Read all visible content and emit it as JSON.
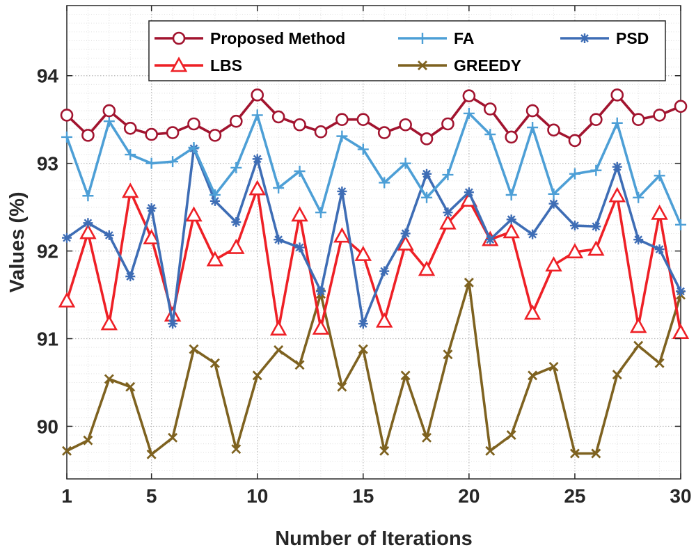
{
  "chart_data": {
    "type": "line",
    "title": "",
    "xlabel": "Number of Iterations",
    "ylabel": "Values (%)",
    "xlim": [
      1,
      30
    ],
    "ylim": [
      89.4,
      94.8
    ],
    "xticks": [
      1,
      5,
      10,
      15,
      20,
      25,
      30
    ],
    "yticks": [
      90,
      91,
      92,
      93,
      94
    ],
    "grid": "major and minor, dotted",
    "legend_position": "top",
    "x": [
      1,
      2,
      3,
      4,
      5,
      6,
      7,
      8,
      9,
      10,
      11,
      12,
      13,
      14,
      15,
      16,
      17,
      18,
      19,
      20,
      21,
      22,
      23,
      24,
      25,
      26,
      27,
      28,
      29,
      30
    ],
    "series": [
      {
        "name": "Proposed Method",
        "color": "#a2142f",
        "marker": "circle",
        "values": [
          93.55,
          93.32,
          93.6,
          93.4,
          93.33,
          93.35,
          93.45,
          93.32,
          93.48,
          93.78,
          93.53,
          93.44,
          93.36,
          93.5,
          93.5,
          93.35,
          93.44,
          93.28,
          93.45,
          93.77,
          93.62,
          93.3,
          93.6,
          93.38,
          93.26,
          93.5,
          93.78,
          93.5,
          93.55,
          93.65
        ]
      },
      {
        "name": "FA",
        "color": "#4d9fd6",
        "marker": "plus",
        "values": [
          93.3,
          92.63,
          93.48,
          93.1,
          93.0,
          93.02,
          93.18,
          92.64,
          92.95,
          93.55,
          92.72,
          92.91,
          92.44,
          93.31,
          93.16,
          92.78,
          93.0,
          92.61,
          92.87,
          93.57,
          93.33,
          92.64,
          93.41,
          92.65,
          92.88,
          92.92,
          93.46,
          92.61,
          92.86,
          92.3
        ]
      },
      {
        "name": "PSD",
        "color": "#3e6db5",
        "marker": "asterisk",
        "values": [
          92.15,
          92.32,
          92.18,
          91.71,
          92.49,
          91.17,
          93.17,
          92.57,
          92.33,
          93.05,
          92.13,
          92.04,
          91.54,
          92.68,
          91.17,
          91.77,
          92.2,
          92.88,
          92.44,
          92.67,
          92.13,
          92.36,
          92.19,
          92.54,
          92.29,
          92.28,
          92.96,
          92.13,
          92.02,
          91.54
        ]
      },
      {
        "name": "LBS",
        "color": "#ee2026",
        "marker": "triangle",
        "values": [
          91.43,
          92.21,
          91.17,
          92.68,
          92.15,
          91.27,
          92.41,
          91.9,
          92.04,
          92.71,
          91.11,
          92.41,
          91.12,
          92.17,
          91.96,
          91.2,
          92.08,
          91.79,
          92.32,
          92.58,
          92.13,
          92.22,
          91.29,
          91.84,
          91.99,
          92.02,
          92.63,
          91.14,
          92.43,
          91.07
        ]
      },
      {
        "name": "GREEDY",
        "color": "#7e6220",
        "marker": "x",
        "values": [
          89.72,
          89.84,
          90.54,
          90.45,
          89.68,
          89.87,
          90.88,
          90.72,
          89.74,
          90.58,
          90.87,
          90.7,
          91.51,
          90.45,
          90.88,
          89.72,
          90.58,
          89.87,
          90.82,
          91.64,
          89.72,
          89.9,
          90.58,
          90.68,
          89.69,
          89.69,
          90.59,
          90.92,
          90.72,
          91.5
        ]
      }
    ]
  }
}
